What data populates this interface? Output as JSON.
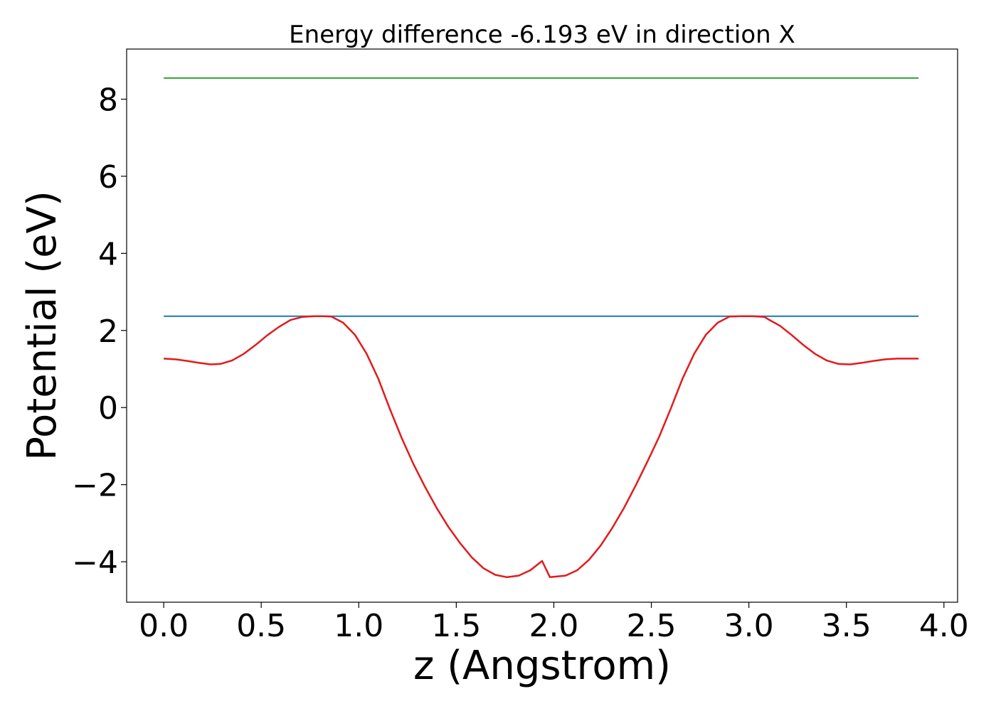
{
  "chart_data": {
    "type": "line",
    "title": "Energy difference -6.193 eV in direction X",
    "xlabel": "z (Angstrom)",
    "ylabel": "Potential (eV)",
    "xlim": [
      -0.19,
      4.07
    ],
    "ylim": [
      -5.05,
      9.3
    ],
    "x_ticks": [
      0.0,
      0.5,
      1.0,
      1.5,
      2.0,
      2.5,
      3.0,
      3.5,
      4.0
    ],
    "x_tick_labels": [
      "0.0",
      "0.5",
      "1.0",
      "1.5",
      "2.0",
      "2.5",
      "3.0",
      "3.5",
      "4.0"
    ],
    "y_ticks": [
      -4,
      -2,
      0,
      2,
      4,
      6,
      8
    ],
    "y_tick_labels": [
      "−4",
      "−2",
      "0",
      "2",
      "4",
      "6",
      "8"
    ],
    "grid": false,
    "series": [
      {
        "color": "#2ca02c",
        "x": [
          0.0,
          3.87
        ],
        "y": [
          8.55,
          8.55
        ]
      },
      {
        "color": "#1f77b4",
        "x": [
          0.0,
          3.87
        ],
        "y": [
          2.37,
          2.37
        ]
      },
      {
        "color": "#e31a1c",
        "x": [
          0.0,
          0.06,
          0.12,
          0.18,
          0.24,
          0.29,
          0.35,
          0.41,
          0.47,
          0.53,
          0.59,
          0.65,
          0.71,
          0.77,
          0.82,
          0.86,
          0.92,
          0.98,
          1.04,
          1.1,
          1.16,
          1.22,
          1.28,
          1.34,
          1.4,
          1.46,
          1.52,
          1.58,
          1.64,
          1.7,
          1.76,
          1.82,
          1.88,
          1.94,
          1.98,
          2.06,
          2.12,
          2.18,
          2.24,
          2.3,
          2.36,
          2.42,
          2.48,
          2.54,
          2.6,
          2.66,
          2.72,
          2.78,
          2.84,
          2.9,
          2.96,
          3.02,
          3.08,
          3.1,
          3.16,
          3.22,
          3.28,
          3.34,
          3.4,
          3.46,
          3.52,
          3.58,
          3.64,
          3.7,
          3.76,
          3.82,
          3.87
        ],
        "y": [
          1.27,
          1.25,
          1.21,
          1.16,
          1.12,
          1.13,
          1.22,
          1.39,
          1.62,
          1.87,
          2.09,
          2.27,
          2.35,
          2.37,
          2.37,
          2.36,
          2.2,
          1.89,
          1.4,
          0.75,
          -0.04,
          -0.79,
          -1.46,
          -2.06,
          -2.61,
          -3.1,
          -3.52,
          -3.89,
          -4.17,
          -4.34,
          -4.4,
          -4.36,
          -4.22,
          -3.98,
          -4.4,
          -4.36,
          -4.22,
          -3.95,
          -3.58,
          -3.12,
          -2.6,
          -2.02,
          -1.4,
          -0.76,
          -0.02,
          0.75,
          1.4,
          1.89,
          2.2,
          2.36,
          2.37,
          2.37,
          2.35,
          2.29,
          2.12,
          1.88,
          1.62,
          1.39,
          1.22,
          1.13,
          1.12,
          1.16,
          1.21,
          1.25,
          1.27,
          1.27,
          1.27
        ]
      }
    ]
  }
}
